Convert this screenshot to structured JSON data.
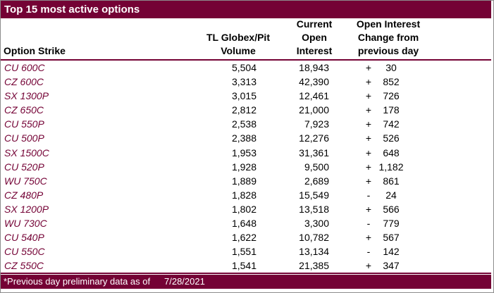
{
  "title": "Top 15 most active options",
  "colors": {
    "bar_maroon": "#740235",
    "strike_text": "#740235",
    "outer_border_gray": "#8c8c8c",
    "header_text": "#000000",
    "bar_text": "#ffffff"
  },
  "table": {
    "headers": {
      "strike": "Option Strike",
      "volume": [
        "TL Globex/Pit",
        "Volume"
      ],
      "open_interest": [
        "Current",
        "Open",
        "Interest"
      ],
      "change": [
        "Open Interest",
        "Change from",
        "previous day"
      ]
    },
    "rows": [
      {
        "strike": "CU 600C",
        "volume": "5,504",
        "open_interest": "18,943",
        "change_sign": "+",
        "change_value": "30"
      },
      {
        "strike": "CZ 600C",
        "volume": "3,313",
        "open_interest": "42,390",
        "change_sign": "+",
        "change_value": "852"
      },
      {
        "strike": "SX 1300P",
        "volume": "3,015",
        "open_interest": "12,461",
        "change_sign": "+",
        "change_value": "726"
      },
      {
        "strike": "CZ 650C",
        "volume": "2,812",
        "open_interest": "21,000",
        "change_sign": "+",
        "change_value": "178"
      },
      {
        "strike": "CU 550P",
        "volume": "2,538",
        "open_interest": "7,923",
        "change_sign": "+",
        "change_value": "742"
      },
      {
        "strike": "CU 500P",
        "volume": "2,388",
        "open_interest": "12,276",
        "change_sign": "+",
        "change_value": "526"
      },
      {
        "strike": "SX 1500C",
        "volume": "1,953",
        "open_interest": "31,361",
        "change_sign": "+",
        "change_value": "648"
      },
      {
        "strike": "CU 520P",
        "volume": "1,928",
        "open_interest": "9,500",
        "change_sign": "+",
        "change_value": "1,182"
      },
      {
        "strike": "WU 750C",
        "volume": "1,889",
        "open_interest": "2,689",
        "change_sign": "+",
        "change_value": "861"
      },
      {
        "strike": "CZ 480P",
        "volume": "1,828",
        "open_interest": "15,549",
        "change_sign": "-",
        "change_value": "24"
      },
      {
        "strike": "SX 1200P",
        "volume": "1,802",
        "open_interest": "13,518",
        "change_sign": "+",
        "change_value": "566"
      },
      {
        "strike": "WU 730C",
        "volume": "1,648",
        "open_interest": "3,300",
        "change_sign": "-",
        "change_value": "779"
      },
      {
        "strike": "CU 540P",
        "volume": "1,622",
        "open_interest": "10,782",
        "change_sign": "+",
        "change_value": "567"
      },
      {
        "strike": "CU 550C",
        "volume": "1,551",
        "open_interest": "13,134",
        "change_sign": "-",
        "change_value": "142"
      },
      {
        "strike": "CZ 550C",
        "volume": "1,541",
        "open_interest": "21,385",
        "change_sign": "+",
        "change_value": "347"
      }
    ]
  },
  "footer": {
    "note": "*Previous day preliminary data as of",
    "date": "7/28/2021"
  }
}
